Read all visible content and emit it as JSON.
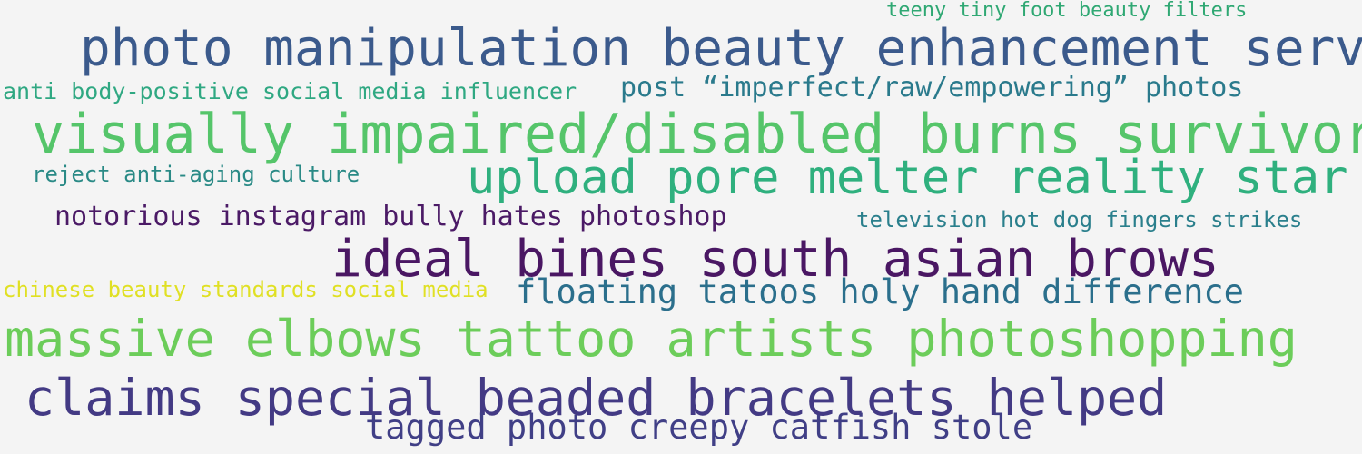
{
  "colors": {
    "background": "#f4f4f4"
  },
  "words": [
    {
      "text": "teeny tiny foot beauty filters",
      "color": "#2fa873"
    },
    {
      "text": "photo manipulation beauty enhancement service",
      "color": "#3b5a8c"
    },
    {
      "text": "anti body-positive social media influencer",
      "color": "#2fa882"
    },
    {
      "text": "post “imperfect/raw/empowering” photos",
      "color": "#2a7a8c"
    },
    {
      "text": "visually impaired/disabled burns survivor",
      "color": "#55c56a"
    },
    {
      "text": "upload pore melter reality star",
      "color": "#2fb07e"
    },
    {
      "text": "reject anti-aging culture",
      "color": "#2a8a86"
    },
    {
      "text": "notorious instagram bully hates photoshop",
      "color": "#4b1a66"
    },
    {
      "text": "television hot dog fingers strikes",
      "color": "#2a7f8c"
    },
    {
      "text": "ideal bines south asian brows",
      "color": "#4a1763"
    },
    {
      "text": "chinese beauty standards social media",
      "color": "#e0e024"
    },
    {
      "text": "floating tatoos holy hand difference",
      "color": "#2b6f8c"
    },
    {
      "text": "massive elbows tattoo artists photoshopping",
      "color": "#6ccd5a"
    },
    {
      "text": "claims special beaded bracelets helped",
      "color": "#433a84"
    },
    {
      "text": "tagged photo creepy catfish stole",
      "color": "#403f86"
    }
  ]
}
